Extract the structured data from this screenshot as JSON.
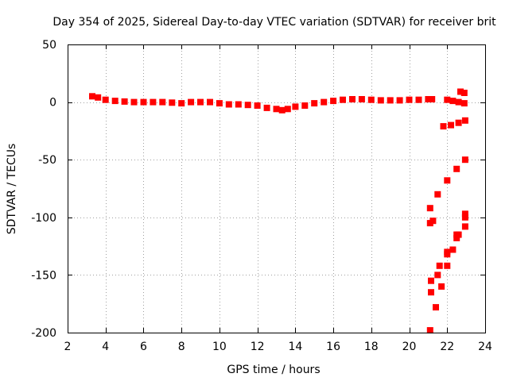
{
  "chart_data": {
    "type": "scatter",
    "title": "Day 354 of 2025, Sidereal Day-to-day VTEC variation (SDTVAR) for receiver brit",
    "xlabel": "GPS time / hours",
    "ylabel": "SDTVAR / TECUs",
    "xlim": [
      2,
      24
    ],
    "ylim": [
      -200,
      50
    ],
    "xticks": [
      2,
      4,
      6,
      8,
      10,
      12,
      14,
      16,
      18,
      20,
      22,
      24
    ],
    "yticks": [
      -200,
      -150,
      -100,
      -50,
      0,
      50
    ],
    "grid": true,
    "legend": "none",
    "marker_color": "#ff0000",
    "series": [
      {
        "x": [
          3.3,
          3.6,
          4.0,
          4.5,
          5.0,
          5.5,
          6.0,
          6.5,
          7.0,
          7.5,
          8.0,
          8.5,
          9.0,
          9.5,
          10.0,
          10.5,
          11.0,
          11.5,
          12.0,
          12.5,
          13.0,
          13.3,
          13.6,
          14.0,
          14.5,
          15.0,
          15.5,
          16.0,
          16.5,
          17.0,
          17.5,
          18.0,
          18.5,
          19.0,
          19.5,
          20.0,
          20.5,
          21.0,
          21.2
        ],
        "y": [
          5,
          4,
          2,
          1,
          0.5,
          0,
          0,
          0,
          0,
          -0.5,
          -1,
          0,
          0,
          0,
          -1,
          -2,
          -2,
          -2.5,
          -3,
          -5,
          -6,
          -7,
          -6,
          -4,
          -3,
          -1,
          0,
          1,
          2,
          2.5,
          2.5,
          2,
          1.5,
          1.5,
          1.5,
          2,
          2,
          2.5,
          2.5
        ]
      },
      {
        "x": [
          22.0,
          22.3,
          22.6,
          22.9
        ],
        "y": [
          2,
          1,
          0,
          -1
        ]
      },
      {
        "x": [
          22.7,
          22.9
        ],
        "y": [
          9,
          8
        ]
      },
      {
        "x": [
          21.8,
          22.2,
          22.6,
          22.95
        ],
        "y": [
          -21,
          -20,
          -18,
          -16
        ]
      },
      {
        "x": [
          21.1,
          21.5,
          22.0,
          22.5,
          22.95
        ],
        "y": [
          -92,
          -80,
          -68,
          -58,
          -50
        ]
      },
      {
        "x": [
          21.1,
          21.25
        ],
        "y": [
          -105,
          -103
        ]
      },
      {
        "x": [
          21.15,
          21.6,
          22.0,
          22.5,
          22.95
        ],
        "y": [
          -155,
          -142,
          -130,
          -118,
          -108
        ]
      },
      {
        "x": [
          21.15,
          21.5,
          22.0,
          22.5,
          22.95
        ],
        "y": [
          -165,
          -150,
          -132,
          -115,
          -97
        ]
      },
      {
        "x": [
          21.1,
          21.4,
          21.7,
          22.0,
          22.3,
          22.6,
          22.95
        ],
        "y": [
          -198,
          -178,
          -160,
          -142,
          -128,
          -115,
          -100
        ]
      }
    ]
  }
}
